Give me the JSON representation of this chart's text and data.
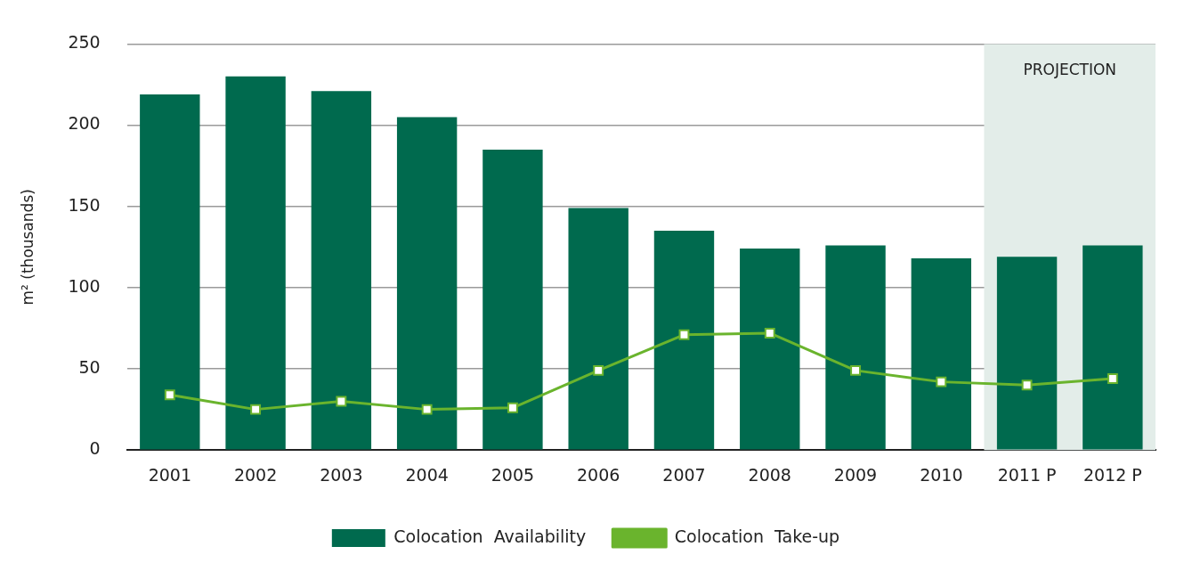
{
  "chart_data": {
    "type": "bar",
    "categories": [
      "2001",
      "2002",
      "2003",
      "2004",
      "2005",
      "2006",
      "2007",
      "2008",
      "2009",
      "2010",
      "2011 P",
      "2012 P"
    ],
    "ylabel": "m² (thousands)",
    "ylim": [
      0,
      250
    ],
    "yticks": [
      0,
      50,
      100,
      150,
      200,
      250
    ],
    "grid": "y",
    "legend": "bottom",
    "bands": [
      {
        "axis": "x",
        "from": "2011 P",
        "to": "2012 P",
        "label": "PROJECTION",
        "color": "#e3ede9"
      }
    ],
    "series": [
      {
        "name": "Colocation  Availability",
        "color": "#006a4e",
        "values": [
          219,
          230,
          221,
          205,
          185,
          149,
          135,
          124,
          126,
          118,
          119,
          126
        ]
      },
      {
        "name": "Colocation  Take-up",
        "type": "line",
        "color": "#6ab42d",
        "marker": "square",
        "values": [
          34,
          25,
          30,
          25,
          26,
          49,
          71,
          72,
          49,
          42,
          40,
          44
        ]
      }
    ]
  }
}
